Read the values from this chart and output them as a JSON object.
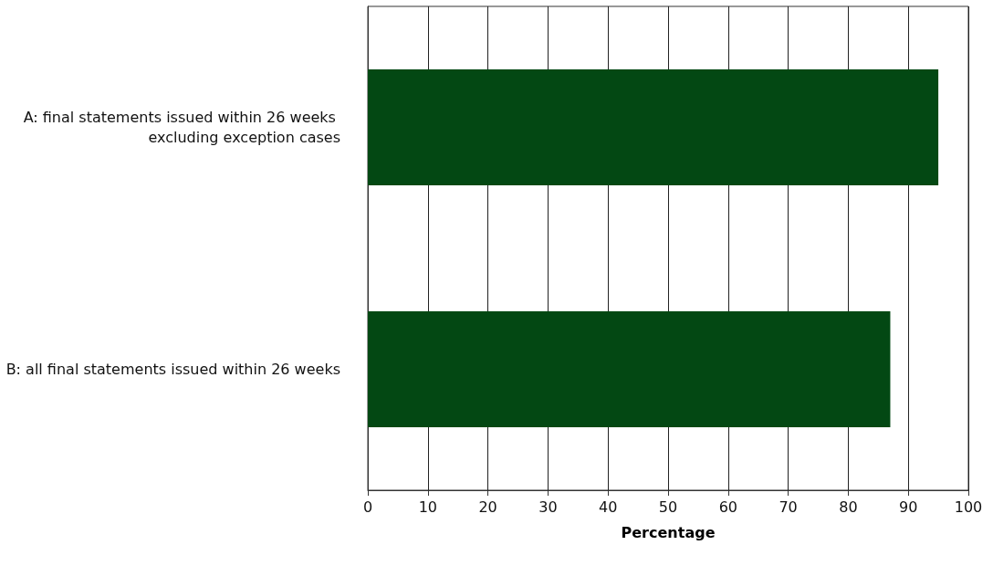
{
  "chart_data": {
    "type": "bar",
    "orientation": "horizontal",
    "xlabel": "Percentage",
    "categories": [
      "A: final statements issued within 26 weeks excluding exception cases",
      "B: all final statements issued within 26 weeks"
    ],
    "values": [
      95,
      87
    ],
    "color": "#034813",
    "xlim": [
      0,
      100
    ],
    "xticks": [
      0,
      10,
      20,
      30,
      40,
      50,
      60,
      70,
      80,
      90,
      100
    ],
    "grid": "x"
  }
}
